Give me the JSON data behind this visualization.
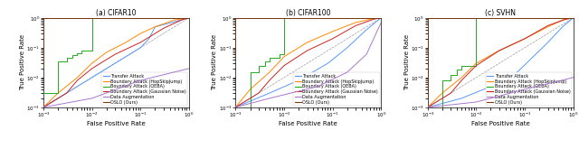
{
  "figsize": [
    6.4,
    1.65
  ],
  "dpi": 100,
  "subtitles": [
    "(a) CIFAR10",
    "(b) CIFAR100",
    "(c) SVHN"
  ],
  "xlabel": "False Positive Rate",
  "ylabel": "True Positive Rate",
  "xlim": [
    0.001,
    1.0
  ],
  "ylim": [
    0.001,
    1.0
  ],
  "legend_labels": [
    "Transfer Attack",
    "Boundary Attack (HopSkipJump)",
    "Boundary Attack (QEBA)",
    "Boundary Attack (Gaussian Noise)",
    "Data Augmentation",
    "OSLO (Ours)"
  ],
  "line_colors": [
    "#5599ff",
    "#ff8800",
    "#22aa22",
    "#cc2222",
    "#aa77cc",
    "#7B3810"
  ],
  "diagonal_color": "#999999",
  "diagonal_style": "--",
  "panels": [
    {
      "name": "CIFAR10",
      "curves": [
        {
          "x": [
            0.001,
            0.005,
            0.02,
            0.05,
            0.1,
            0.15,
            0.2,
            1.0
          ],
          "y": [
            0.001,
            0.005,
            0.02,
            0.05,
            0.1,
            0.2,
            0.5,
            1.0
          ]
        },
        {
          "x": [
            0.001,
            0.002,
            0.005,
            0.01,
            0.02,
            0.05,
            0.1,
            0.2,
            0.5,
            1.0
          ],
          "y": [
            0.001,
            0.003,
            0.01,
            0.03,
            0.07,
            0.15,
            0.3,
            0.5,
            0.85,
            1.0
          ]
        },
        {
          "x": [
            0.001,
            0.002,
            0.002,
            0.003,
            0.003,
            0.004,
            0.004,
            0.005,
            0.005,
            0.006,
            0.006,
            0.01,
            0.01,
            1.0
          ],
          "y": [
            0.003,
            0.003,
            0.035,
            0.035,
            0.045,
            0.045,
            0.055,
            0.055,
            0.065,
            0.065,
            0.08,
            0.08,
            1.0,
            1.0
          ]
        },
        {
          "x": [
            0.001,
            0.003,
            0.005,
            0.01,
            0.03,
            0.1,
            0.3,
            0.7,
            1.0
          ],
          "y": [
            0.001,
            0.003,
            0.008,
            0.02,
            0.06,
            0.15,
            0.45,
            0.85,
            1.0
          ]
        },
        {
          "x": [
            0.001,
            0.01,
            0.1,
            1.0
          ],
          "y": [
            0.001,
            0.002,
            0.008,
            0.02
          ]
        },
        {
          "x": [
            0.001,
            0.001,
            1.0
          ],
          "y": [
            0.025,
            1.0,
            1.0
          ]
        }
      ]
    },
    {
      "name": "CIFAR100",
      "curves": [
        {
          "x": [
            0.001,
            0.005,
            0.02,
            0.08,
            0.2,
            0.5,
            0.8,
            1.0
          ],
          "y": [
            0.001,
            0.003,
            0.008,
            0.03,
            0.1,
            0.4,
            0.75,
            1.0
          ]
        },
        {
          "x": [
            0.001,
            0.002,
            0.005,
            0.01,
            0.03,
            0.1,
            0.3,
            0.7,
            1.0
          ],
          "y": [
            0.001,
            0.004,
            0.015,
            0.05,
            0.15,
            0.35,
            0.7,
            0.95,
            1.0
          ]
        },
        {
          "x": [
            0.001,
            0.002,
            0.002,
            0.003,
            0.003,
            0.004,
            0.004,
            0.005,
            0.005,
            0.008,
            0.008,
            0.01,
            0.01,
            1.0
          ],
          "y": [
            0.001,
            0.001,
            0.015,
            0.015,
            0.025,
            0.025,
            0.035,
            0.035,
            0.045,
            0.045,
            0.06,
            0.06,
            1.0,
            1.0
          ]
        },
        {
          "x": [
            0.001,
            0.003,
            0.005,
            0.01,
            0.03,
            0.1,
            0.3,
            0.7,
            1.0
          ],
          "y": [
            0.001,
            0.003,
            0.008,
            0.025,
            0.08,
            0.2,
            0.55,
            0.9,
            1.0
          ]
        },
        {
          "x": [
            0.001,
            0.005,
            0.05,
            0.2,
            0.5,
            1.0
          ],
          "y": [
            0.001,
            0.002,
            0.005,
            0.015,
            0.06,
            0.7
          ]
        },
        {
          "x": [
            0.001,
            0.001,
            1.0
          ],
          "y": [
            0.045,
            1.0,
            1.0
          ]
        }
      ]
    },
    {
      "name": "SVHN",
      "curves": [
        {
          "x": [
            0.001,
            0.005,
            0.02,
            0.07,
            0.15,
            0.3,
            0.6,
            1.0
          ],
          "y": [
            0.001,
            0.002,
            0.005,
            0.015,
            0.05,
            0.15,
            0.5,
            1.0
          ]
        },
        {
          "x": [
            0.001,
            0.002,
            0.005,
            0.01,
            0.03,
            0.1,
            0.3,
            0.6,
            1.0
          ],
          "y": [
            0.001,
            0.003,
            0.01,
            0.03,
            0.08,
            0.2,
            0.5,
            0.85,
            1.0
          ]
        },
        {
          "x": [
            0.001,
            0.002,
            0.002,
            0.003,
            0.003,
            0.004,
            0.004,
            0.005,
            0.005,
            0.01,
            0.01,
            1.0
          ],
          "y": [
            0.001,
            0.001,
            0.008,
            0.008,
            0.012,
            0.012,
            0.018,
            0.018,
            0.025,
            0.025,
            1.0,
            1.0
          ]
        },
        {
          "x": [
            0.001,
            0.003,
            0.005,
            0.01,
            0.03,
            0.1,
            0.3,
            0.7,
            1.0
          ],
          "y": [
            0.001,
            0.003,
            0.008,
            0.025,
            0.08,
            0.2,
            0.55,
            0.9,
            1.0
          ]
        },
        {
          "x": [
            0.001,
            0.01,
            0.1,
            1.0
          ],
          "y": [
            0.001,
            0.0015,
            0.004,
            0.01
          ]
        },
        {
          "x": [
            0.001,
            0.001,
            1.0
          ],
          "y": [
            0.002,
            1.0,
            1.0
          ]
        }
      ]
    }
  ]
}
